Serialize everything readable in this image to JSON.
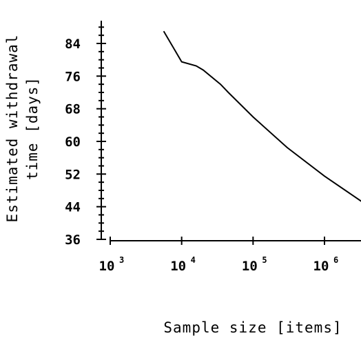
{
  "chart_data": {
    "type": "line",
    "xlabel": "Sample size [items]",
    "ylabel": [
      "Estimated withdrawal",
      "time [days]"
    ],
    "x_scale": "log",
    "xlim": [
      1000,
      3500000
    ],
    "ylim": [
      36,
      92
    ],
    "x_ticks": [
      {
        "base": "10",
        "exp": "3",
        "value": 1000
      },
      {
        "base": "10",
        "exp": "4",
        "value": 10000
      },
      {
        "base": "10",
        "exp": "5",
        "value": 100000
      },
      {
        "base": "10",
        "exp": "6",
        "value": 1000000
      }
    ],
    "y_ticks": [
      "36",
      "44",
      "52",
      "60",
      "68",
      "76",
      "84"
    ],
    "series": [
      {
        "x": [
          5600,
          10000,
          16000,
          20000,
          35000,
          45000,
          100000,
          300000,
          1000000,
          3500000
        ],
        "y": [
          87,
          79.5,
          78.5,
          77.5,
          74,
          72,
          66,
          58.5,
          51.5,
          45
        ]
      }
    ],
    "grid": false,
    "legend": "none"
  }
}
